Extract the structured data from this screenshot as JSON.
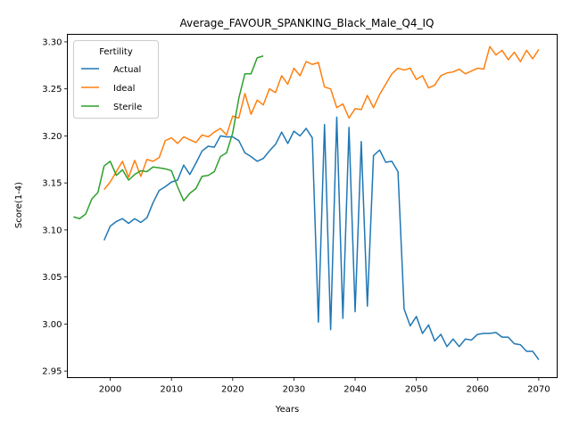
{
  "chart_data": {
    "type": "line",
    "title": "Average_FAVOUR_SPANKING_Black_Male_Q4_IQ",
    "xlabel": "Years",
    "ylabel": "Score(1-4)",
    "xlim": [
      1993,
      2073
    ],
    "ylim": [
      2.943,
      3.308
    ],
    "xticks": [
      2000,
      2010,
      2020,
      2030,
      2040,
      2050,
      2060,
      2070
    ],
    "yticks": [
      2.95,
      3.0,
      3.05,
      3.1,
      3.15,
      3.2,
      3.25,
      3.3
    ],
    "grid": false,
    "legend": {
      "title": "Fertility",
      "placement": "top-left"
    },
    "series": [
      {
        "name": "Actual",
        "color": "#1f77b4",
        "x": [
          1999,
          2000,
          2001,
          2002,
          2003,
          2004,
          2005,
          2006,
          2007,
          2008,
          2009,
          2010,
          2011,
          2012,
          2013,
          2014,
          2015,
          2016,
          2017,
          2018,
          2019,
          2020,
          2021,
          2022,
          2023,
          2024,
          2025,
          2026,
          2027,
          2028,
          2029,
          2030,
          2031,
          2032,
          2033,
          2034,
          2035,
          2036,
          2037,
          2038,
          2039,
          2040,
          2041,
          2042,
          2043,
          2044,
          2045,
          2046,
          2047,
          2048,
          2049,
          2050,
          2051,
          2052,
          2053,
          2054,
          2055,
          2056,
          2057,
          2058,
          2059,
          2060,
          2061,
          2062,
          2063,
          2064,
          2065,
          2066,
          2067,
          2068,
          2069,
          2070
        ],
        "y": [
          3.089,
          3.104,
          3.109,
          3.112,
          3.107,
          3.112,
          3.108,
          3.113,
          3.129,
          3.142,
          3.146,
          3.151,
          3.153,
          3.169,
          3.159,
          3.171,
          3.184,
          3.189,
          3.188,
          3.2,
          3.199,
          3.199,
          3.195,
          3.182,
          3.178,
          3.173,
          3.176,
          3.184,
          3.191,
          3.204,
          3.192,
          3.205,
          3.2,
          3.208,
          3.198,
          3.002,
          3.212,
          2.994,
          3.22,
          3.006,
          3.209,
          3.013,
          3.194,
          3.019,
          3.179,
          3.185,
          3.172,
          3.173,
          3.162,
          3.016,
          2.998,
          3.008,
          2.99,
          2.999,
          2.982,
          2.989,
          2.976,
          2.984,
          2.976,
          2.984,
          2.983,
          2.989,
          2.99,
          2.99,
          2.991,
          2.986,
          2.986,
          2.979,
          2.978,
          2.971,
          2.971,
          2.962
        ]
      },
      {
        "name": "Ideal",
        "color": "#ff7f0e",
        "x": [
          1999,
          2000,
          2001,
          2002,
          2003,
          2004,
          2005,
          2006,
          2007,
          2008,
          2009,
          2010,
          2011,
          2012,
          2013,
          2014,
          2015,
          2016,
          2017,
          2018,
          2019,
          2020,
          2021,
          2022,
          2023,
          2024,
          2025,
          2026,
          2027,
          2028,
          2029,
          2030,
          2031,
          2032,
          2033,
          2034,
          2035,
          2036,
          2037,
          2038,
          2039,
          2040,
          2041,
          2042,
          2043,
          2044,
          2045,
          2046,
          2047,
          2048,
          2049,
          2050,
          2051,
          2052,
          2053,
          2054,
          2055,
          2056,
          2057,
          2058,
          2059,
          2060,
          2061,
          2062,
          2063,
          2064,
          2065,
          2066,
          2067,
          2068,
          2069,
          2070
        ],
        "y": [
          3.143,
          3.151,
          3.162,
          3.173,
          3.156,
          3.174,
          3.157,
          3.175,
          3.173,
          3.177,
          3.195,
          3.198,
          3.192,
          3.199,
          3.196,
          3.193,
          3.201,
          3.199,
          3.204,
          3.208,
          3.201,
          3.221,
          3.219,
          3.245,
          3.223,
          3.238,
          3.233,
          3.25,
          3.246,
          3.264,
          3.255,
          3.272,
          3.264,
          3.279,
          3.276,
          3.278,
          3.252,
          3.25,
          3.23,
          3.234,
          3.219,
          3.229,
          3.228,
          3.243,
          3.23,
          3.244,
          3.255,
          3.266,
          3.272,
          3.27,
          3.272,
          3.26,
          3.264,
          3.251,
          3.254,
          3.264,
          3.267,
          3.268,
          3.271,
          3.266,
          3.269,
          3.272,
          3.271,
          3.295,
          3.286,
          3.291,
          3.281,
          3.289,
          3.279,
          3.291,
          3.282,
          3.292
        ]
      },
      {
        "name": "Sterile",
        "color": "#2ca02c",
        "x": [
          1994,
          1995,
          1996,
          1997,
          1998,
          1999,
          2000,
          2001,
          2002,
          2003,
          2004,
          2005,
          2006,
          2007,
          2008,
          2009,
          2010,
          2011,
          2012,
          2013,
          2014,
          2015,
          2016,
          2017,
          2018,
          2019,
          2020,
          2021,
          2022,
          2023,
          2024,
          2025
        ],
        "y": [
          3.114,
          3.112,
          3.117,
          3.133,
          3.14,
          3.168,
          3.173,
          3.158,
          3.164,
          3.153,
          3.159,
          3.163,
          3.162,
          3.167,
          3.166,
          3.165,
          3.163,
          3.146,
          3.131,
          3.139,
          3.144,
          3.157,
          3.158,
          3.162,
          3.178,
          3.182,
          3.203,
          3.24,
          3.266,
          3.266,
          3.283,
          3.285
        ]
      }
    ]
  }
}
